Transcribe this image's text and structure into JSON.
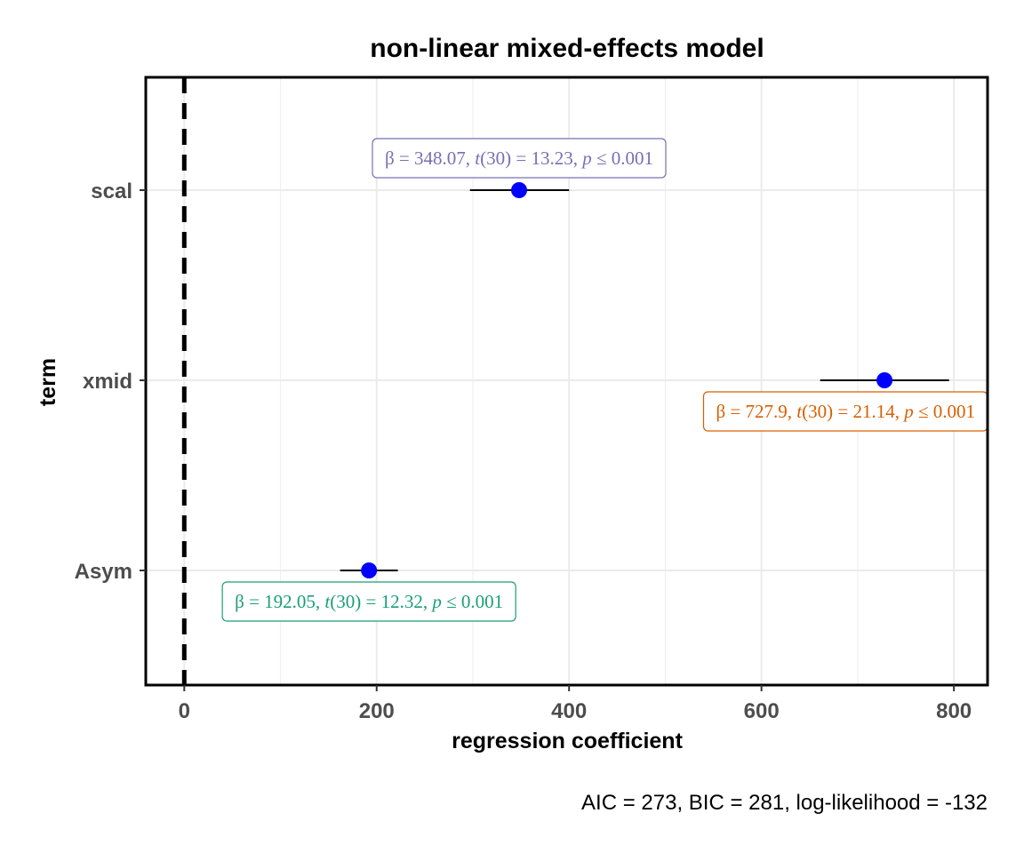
{
  "chart_data": {
    "type": "scatter",
    "title": "non-linear mixed-effects model",
    "xlabel": "regression coefficient",
    "ylabel": "term",
    "caption": "AIC = 273, BIC = 281, log-likelihood = -132",
    "xlim": [
      -40,
      835
    ],
    "x_ticks": [
      0,
      200,
      400,
      600,
      800
    ],
    "x_minor_ticks": [
      100,
      300,
      500,
      700
    ],
    "reference_line": 0,
    "grid": true,
    "point_color": "#0000ff",
    "terms": [
      {
        "term": "Asym",
        "estimate": 192.05,
        "conf_low": 162,
        "conf_high": 222,
        "label": {
          "beta": "192.05",
          "df": "30",
          "t": "12.32",
          "p": "0.001"
        },
        "label_color": "#1b9e77",
        "label_position": "below"
      },
      {
        "term": "xmid",
        "estimate": 727.9,
        "conf_low": 661,
        "conf_high": 795,
        "label": {
          "beta": "727.9",
          "df": "30",
          "t": "21.14",
          "p": "0.001"
        },
        "label_color": "#d95f02",
        "label_position": "below"
      },
      {
        "term": "scal",
        "estimate": 348.07,
        "conf_low": 297,
        "conf_high": 400,
        "label": {
          "beta": "348.07",
          "df": "30",
          "t": "13.23",
          "p": "0.001"
        },
        "label_color": "#7570b3",
        "label_position": "above"
      }
    ]
  }
}
